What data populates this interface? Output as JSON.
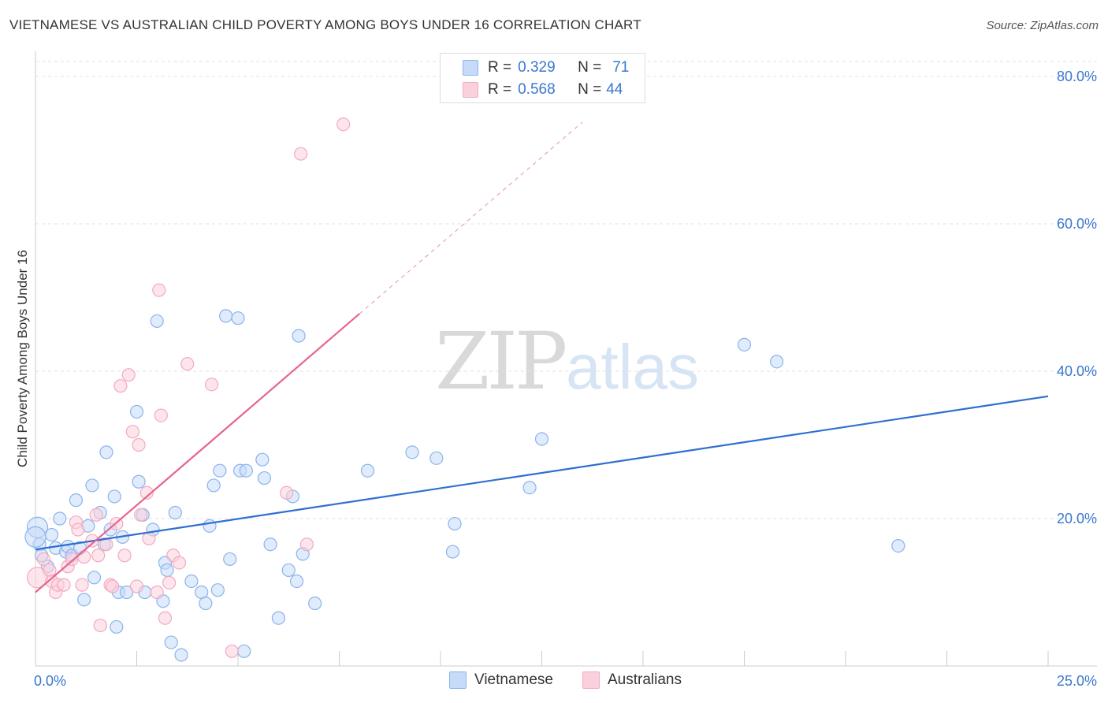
{
  "title": "VIETNAMESE VS AUSTRALIAN CHILD POVERTY AMONG BOYS UNDER 16 CORRELATION CHART",
  "source": "Source: ZipAtlas.com",
  "watermark": {
    "zip": "ZIP",
    "atlas": "atlas"
  },
  "legend": {
    "r_label": "R =",
    "n_label": "N =",
    "rows": [
      {
        "r": "0.329",
        "n": "71",
        "color": "#8ab4ec"
      },
      {
        "r": "0.568",
        "n": "44",
        "color": "#f4a9c0"
      }
    ]
  },
  "chart_data": {
    "type": "scatter",
    "title": "VIETNAMESE VS AUSTRALIAN CHILD POVERTY AMONG BOYS UNDER 16 CORRELATION CHART",
    "xlabel": "",
    "ylabel": "Child Poverty Among Boys Under 16",
    "xlim": [
      0,
      25
    ],
    "ylim": [
      0,
      82
    ],
    "x_ticks": [
      "0.0%",
      "25.0%"
    ],
    "y_ticks": [
      {
        "value": 20,
        "label": "20.0%"
      },
      {
        "value": 40,
        "label": "40.0%"
      },
      {
        "value": 60,
        "label": "60.0%"
      },
      {
        "value": 80,
        "label": "80.0%"
      }
    ],
    "grid": true,
    "legend_position": "top-center",
    "series": [
      {
        "name": "Vietnamese",
        "color": "#8ab4ec",
        "line_color": "#2f6fd0",
        "trend": {
          "x0": 0,
          "y0": 15.8,
          "x1": 25,
          "y1": 36.6,
          "dashed_from": null
        },
        "points": [
          [
            0.05,
            18.8
          ],
          [
            0.1,
            16.5
          ],
          [
            0.15,
            15.0
          ],
          [
            0.3,
            13.5
          ],
          [
            0.4,
            17.8
          ],
          [
            0.5,
            16.0
          ],
          [
            0.6,
            20.0
          ],
          [
            0.75,
            15.5
          ],
          [
            0.8,
            16.2
          ],
          [
            0.9,
            15.0
          ],
          [
            1.0,
            22.5
          ],
          [
            1.1,
            16.0
          ],
          [
            1.2,
            9.0
          ],
          [
            1.3,
            19.0
          ],
          [
            1.4,
            24.5
          ],
          [
            1.45,
            12.0
          ],
          [
            1.6,
            20.8
          ],
          [
            1.7,
            16.5
          ],
          [
            1.75,
            29.0
          ],
          [
            1.85,
            18.5
          ],
          [
            1.95,
            23.0
          ],
          [
            2.0,
            5.3
          ],
          [
            2.05,
            10.0
          ],
          [
            2.15,
            17.5
          ],
          [
            2.25,
            10.0
          ],
          [
            2.5,
            34.5
          ],
          [
            2.55,
            25.0
          ],
          [
            2.65,
            20.5
          ],
          [
            2.7,
            10.0
          ],
          [
            2.9,
            18.5
          ],
          [
            3.0,
            46.8
          ],
          [
            3.15,
            8.8
          ],
          [
            3.2,
            14.0
          ],
          [
            3.25,
            13.0
          ],
          [
            3.45,
            20.8
          ],
          [
            3.35,
            3.2
          ],
          [
            3.6,
            1.5
          ],
          [
            3.85,
            11.5
          ],
          [
            4.1,
            10.0
          ],
          [
            4.2,
            8.5
          ],
          [
            4.3,
            19.0
          ],
          [
            4.4,
            24.5
          ],
          [
            4.5,
            10.3
          ],
          [
            4.55,
            26.5
          ],
          [
            4.7,
            47.5
          ],
          [
            4.8,
            14.5
          ],
          [
            5.0,
            47.2
          ],
          [
            5.05,
            26.5
          ],
          [
            5.2,
            26.5
          ],
          [
            5.15,
            2.0
          ],
          [
            5.6,
            28.0
          ],
          [
            5.65,
            25.5
          ],
          [
            5.8,
            16.5
          ],
          [
            6.0,
            6.5
          ],
          [
            6.25,
            13.0
          ],
          [
            6.35,
            23.0
          ],
          [
            6.45,
            11.5
          ],
          [
            6.5,
            44.8
          ],
          [
            6.6,
            15.2
          ],
          [
            6.9,
            8.5
          ],
          [
            8.2,
            26.5
          ],
          [
            9.3,
            29.0
          ],
          [
            9.9,
            28.2
          ],
          [
            10.3,
            15.5
          ],
          [
            10.35,
            19.3
          ],
          [
            12.2,
            24.2
          ],
          [
            12.5,
            30.8
          ],
          [
            17.5,
            43.6
          ],
          [
            18.3,
            41.3
          ],
          [
            21.3,
            16.3
          ],
          [
            0.0,
            17.5
          ]
        ]
      },
      {
        "name": "Australians",
        "color": "#f4a9c0",
        "line_color": "#e8648e",
        "trend": {
          "x0": 0,
          "y0": 10.0,
          "x1": 8.0,
          "y1": 47.8,
          "dashed_from": 8.0,
          "dashed_to_x": 13.5
        },
        "points": [
          [
            0.05,
            12.0
          ],
          [
            0.2,
            14.5
          ],
          [
            0.35,
            13.0
          ],
          [
            0.4,
            11.5
          ],
          [
            0.5,
            10.0
          ],
          [
            0.55,
            11.0
          ],
          [
            0.7,
            11.0
          ],
          [
            0.8,
            13.5
          ],
          [
            0.9,
            14.5
          ],
          [
            1.0,
            19.5
          ],
          [
            1.05,
            18.5
          ],
          [
            1.15,
            11.0
          ],
          [
            1.2,
            14.8
          ],
          [
            1.4,
            17.0
          ],
          [
            1.5,
            20.5
          ],
          [
            1.55,
            15.0
          ],
          [
            1.6,
            5.5
          ],
          [
            1.75,
            16.5
          ],
          [
            1.85,
            11.0
          ],
          [
            1.9,
            10.8
          ],
          [
            2.0,
            19.3
          ],
          [
            2.1,
            38.0
          ],
          [
            2.2,
            15.0
          ],
          [
            2.3,
            39.5
          ],
          [
            2.4,
            31.8
          ],
          [
            2.5,
            10.8
          ],
          [
            2.55,
            30.0
          ],
          [
            2.6,
            20.5
          ],
          [
            2.75,
            23.5
          ],
          [
            2.8,
            17.3
          ],
          [
            3.0,
            10.0
          ],
          [
            3.05,
            51.0
          ],
          [
            3.1,
            34.0
          ],
          [
            3.2,
            6.5
          ],
          [
            3.3,
            11.3
          ],
          [
            3.4,
            15.0
          ],
          [
            3.55,
            14.0
          ],
          [
            3.75,
            41.0
          ],
          [
            4.35,
            38.2
          ],
          [
            4.85,
            2.0
          ],
          [
            6.2,
            23.5
          ],
          [
            6.55,
            69.5
          ],
          [
            6.7,
            16.5
          ],
          [
            7.6,
            73.5
          ]
        ]
      }
    ]
  }
}
